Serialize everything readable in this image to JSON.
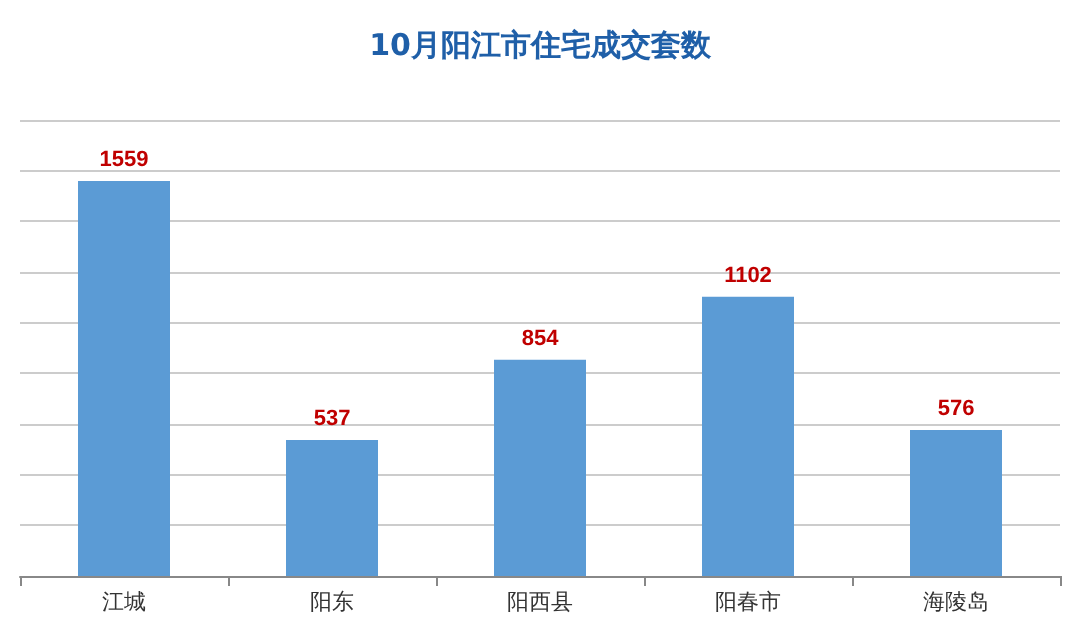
{
  "chart_data": {
    "type": "bar",
    "title": "10月阳江市住宅成交套数",
    "categories": [
      "江城",
      "阳东",
      "阳西县",
      "阳春市",
      "海陵岛"
    ],
    "values": [
      1559,
      537,
      854,
      1102,
      576
    ],
    "color": "#5b9bd5",
    "data_labels": true,
    "ylim": [
      0,
      1800
    ],
    "yticks": [
      {
        "value": 0,
        "label": null
      },
      {
        "value": 200,
        "label": null
      },
      {
        "value": 400,
        "label": null
      },
      {
        "value": 600,
        "label": null
      },
      {
        "value": 800,
        "label": null
      },
      {
        "value": 1000,
        "label": null
      },
      {
        "value": 1200,
        "label": null
      },
      {
        "value": 1400,
        "label": null
      },
      {
        "value": 1600,
        "label": null
      },
      {
        "value": 1800,
        "label": null
      }
    ],
    "grid": "y",
    "tick_labels": "x"
  }
}
